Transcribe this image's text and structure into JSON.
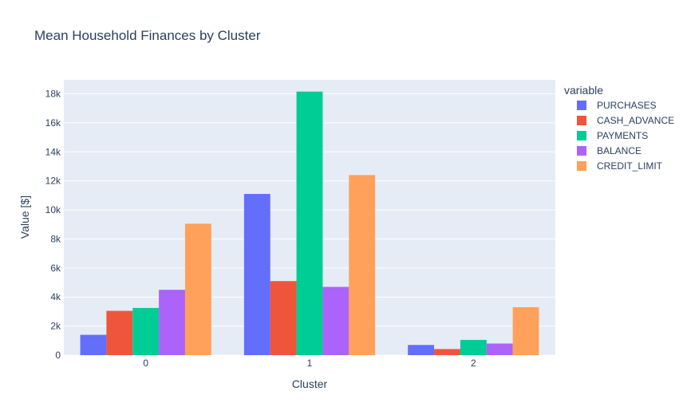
{
  "chart_data": {
    "type": "bar",
    "title": "Mean Household Finances by Cluster",
    "xlabel": "Cluster",
    "ylabel": "Value [$]",
    "categories": [
      "0",
      "1",
      "2"
    ],
    "ylim": [
      0,
      18000
    ],
    "yticks": [
      0,
      2000,
      4000,
      6000,
      8000,
      10000,
      12000,
      14000,
      16000,
      18000
    ],
    "ytick_labels": [
      "0",
      "2k",
      "4k",
      "6k",
      "8k",
      "10k",
      "12k",
      "14k",
      "16k",
      "18k"
    ],
    "grid": true,
    "legend_title": "variable",
    "legend_position": "right",
    "barmode": "group",
    "series": [
      {
        "name": "PURCHASES",
        "values": [
          1400,
          11100,
          700
        ],
        "color": "#636efa"
      },
      {
        "name": "CASH_ADVANCE",
        "values": [
          3050,
          5100,
          420
        ],
        "color": "#EF553B"
      },
      {
        "name": "PAYMENTS",
        "values": [
          3250,
          18150,
          1050
        ],
        "color": "#00cc96"
      },
      {
        "name": "BALANCE",
        "values": [
          4500,
          4700,
          800
        ],
        "color": "#ab63fa"
      },
      {
        "name": "CREDIT_LIMIT",
        "values": [
          9050,
          12400,
          3300
        ],
        "color": "#FFA15A"
      }
    ]
  },
  "colors": {
    "plot_background": "#E5ECF6",
    "grid": "#ffffff",
    "text": "#2a3f5f"
  }
}
